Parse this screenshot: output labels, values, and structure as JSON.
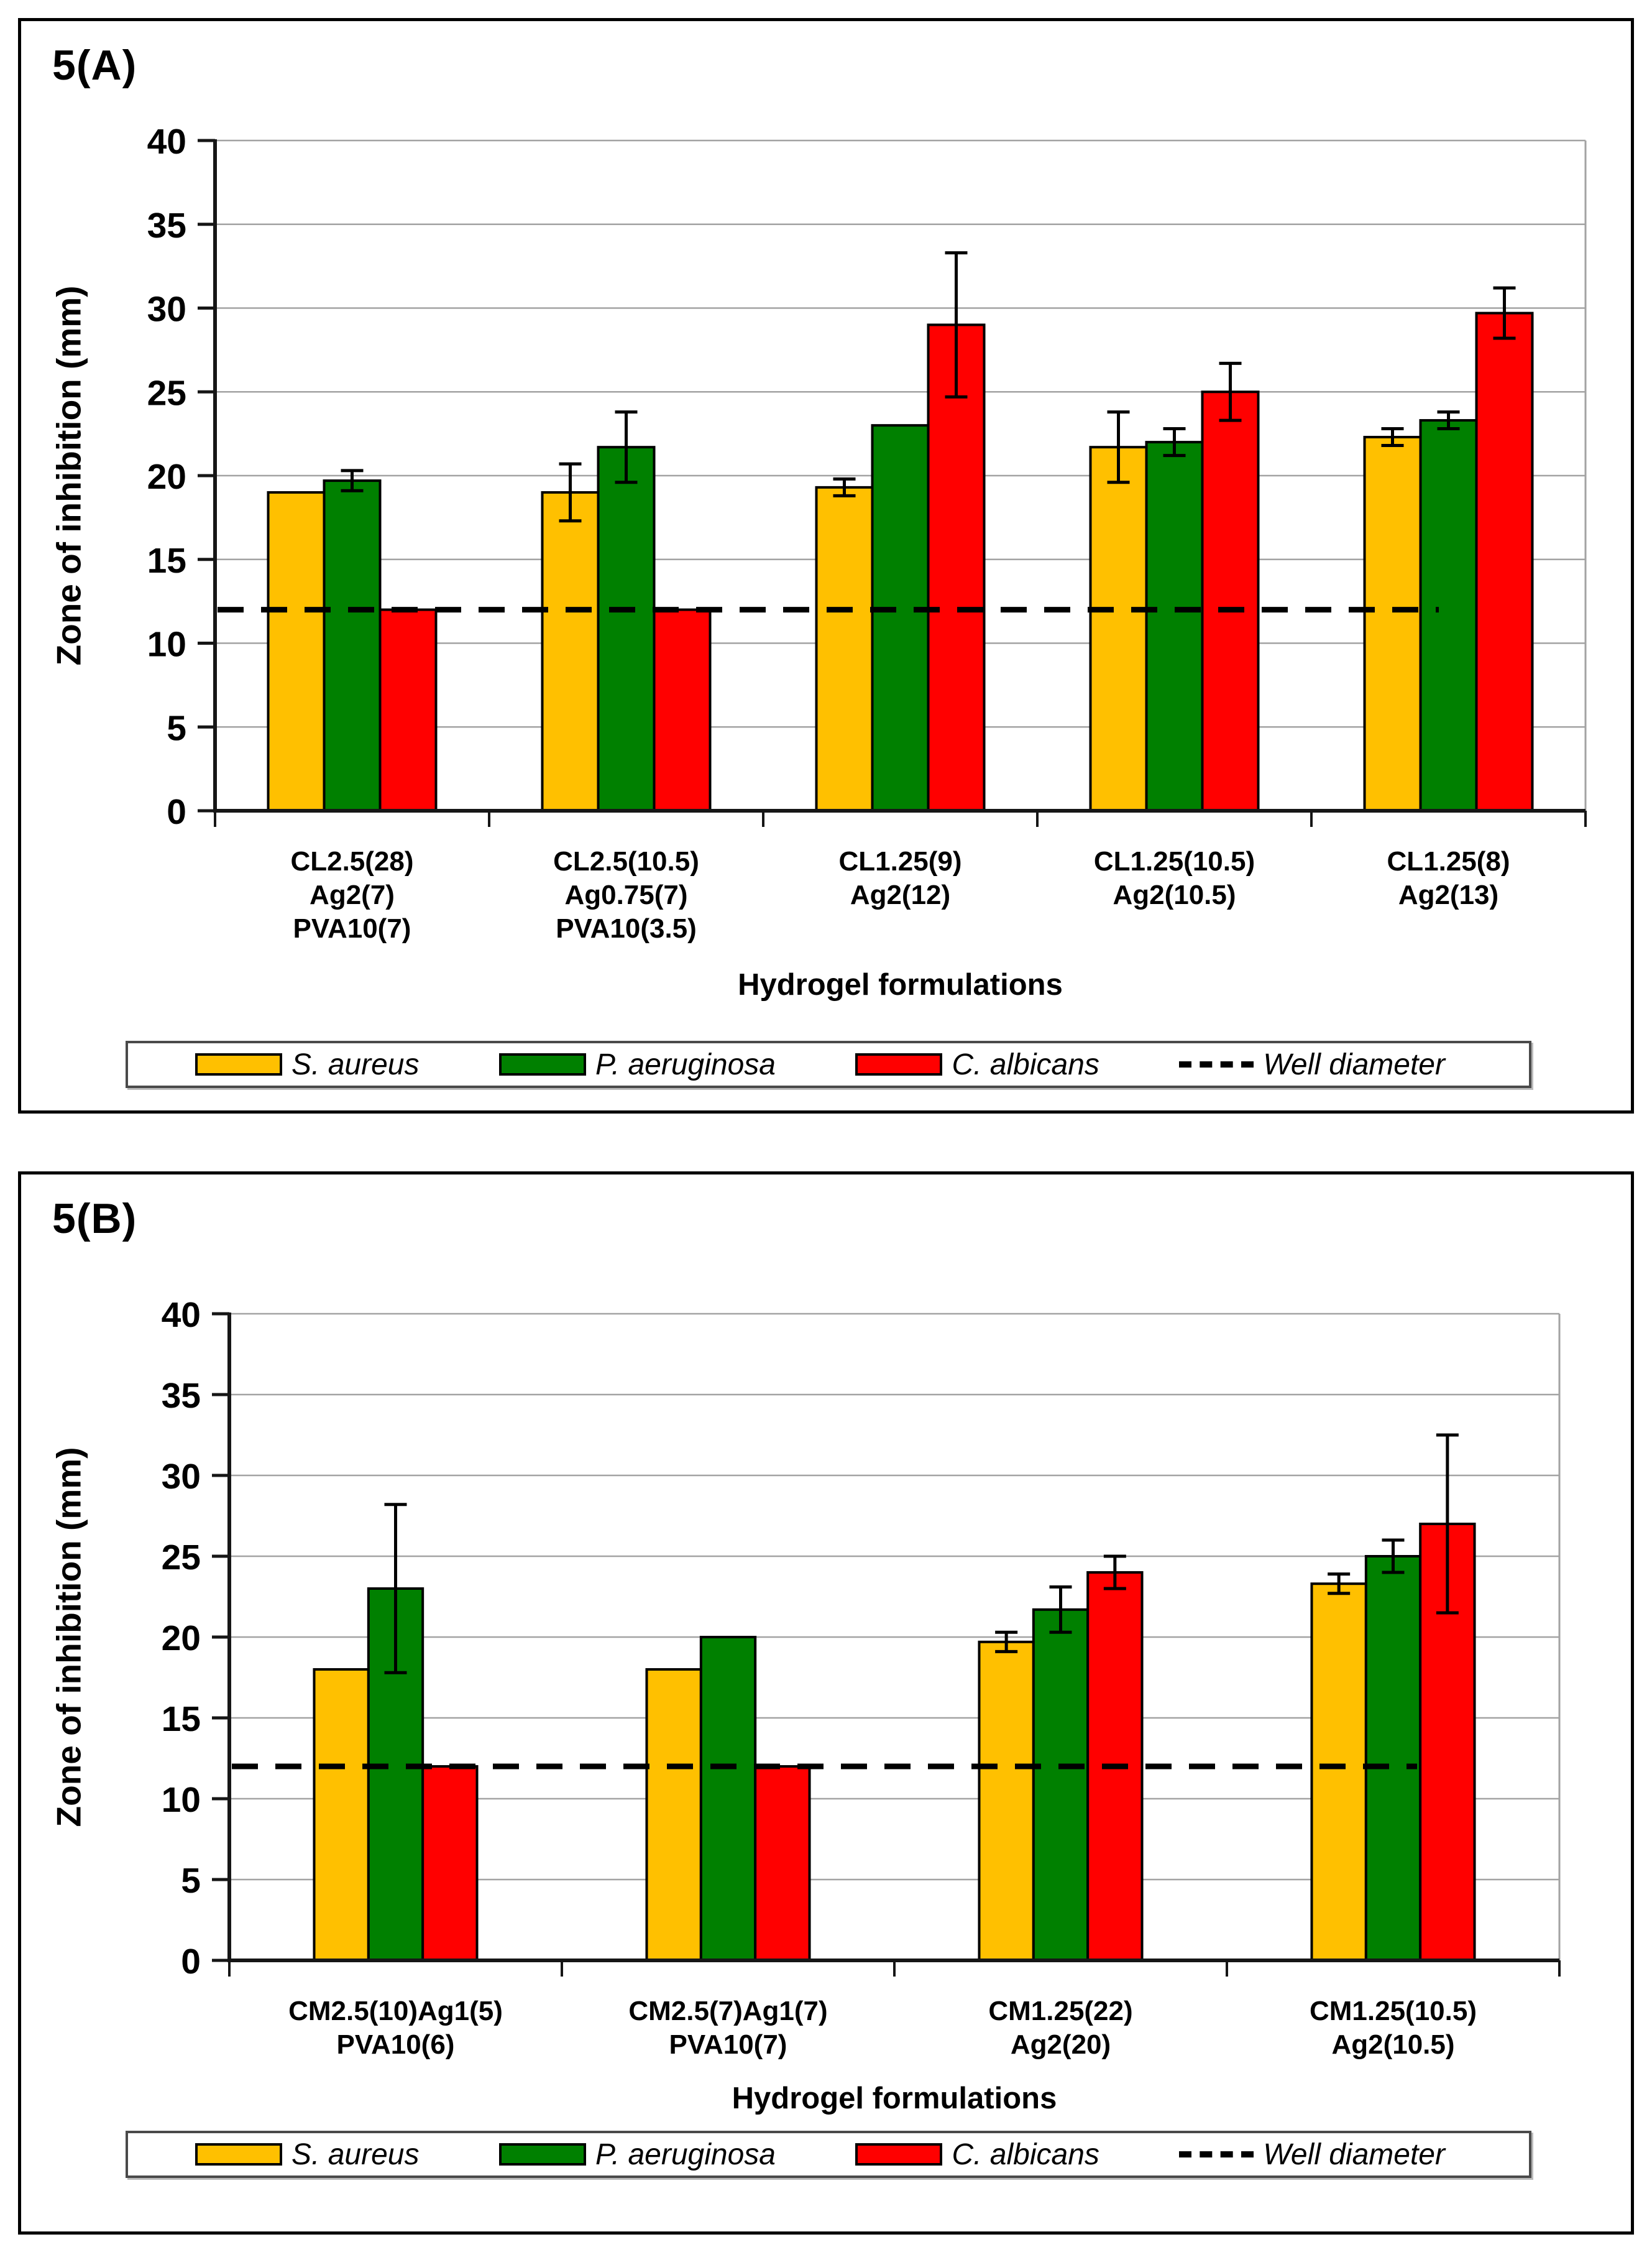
{
  "figure": {
    "background": "#ffffff",
    "bar_outline_color": "#000000",
    "gridline_color": "#a3a3a3",
    "axis_color": "#161616",
    "well_line_color": "#000000"
  },
  "chart_data": [
    {
      "type": "bar",
      "panel_label": "5(A)",
      "xlabel": "Hydrogel formulations",
      "ylabel": "Zone of inhibition (mm)",
      "y_axis": {
        "min": 0,
        "max": 40,
        "step": 5
      },
      "grid": true,
      "legend_position": "bottom",
      "well_diameter": 12,
      "categories": [
        {
          "lines": [
            "CL2.5(28)",
            "Ag2(7)",
            "PVA10(7)"
          ]
        },
        {
          "lines": [
            "CL2.5(10.5)",
            "Ag0.75(7)",
            "PVA10(3.5)"
          ]
        },
        {
          "lines": [
            "CL1.25(9)",
            "Ag2(12)"
          ]
        },
        {
          "lines": [
            "CL1.25(10.5)",
            "Ag2(10.5)"
          ]
        },
        {
          "lines": [
            "CL1.25(8)",
            "Ag2(13)"
          ]
        }
      ],
      "series": [
        {
          "name": "S. aureus",
          "color": "#FFC000",
          "values": [
            19,
            19,
            19.3,
            21.7,
            22.3
          ],
          "errors": [
            0,
            1.7,
            0.5,
            2.1,
            0.5
          ]
        },
        {
          "name": "P. aeruginosa",
          "color": "#008000",
          "values": [
            19.7,
            21.7,
            23,
            22,
            23.3
          ],
          "errors": [
            0.6,
            2.1,
            0,
            0.8,
            0.5
          ]
        },
        {
          "name": "C. albicans",
          "color": "#FF0000",
          "values": [
            12,
            12,
            29,
            25,
            29.7
          ],
          "errors": [
            0,
            0,
            4.3,
            1.7,
            1.5
          ]
        }
      ],
      "legend": [
        {
          "label": "S. aureus",
          "color": "#FFC000",
          "type": "box"
        },
        {
          "label": "P. aeruginosa",
          "color": "#008000",
          "type": "box"
        },
        {
          "label": "C. albicans",
          "color": "#FF0000",
          "type": "box"
        },
        {
          "label": "Well diameter",
          "color": "#000000",
          "type": "dash"
        }
      ]
    },
    {
      "type": "bar",
      "panel_label": "5(B)",
      "xlabel": "Hydrogel formulations",
      "ylabel": "Zone of inhibition (mm)",
      "y_axis": {
        "min": 0,
        "max": 40,
        "step": 5
      },
      "grid": true,
      "legend_position": "bottom",
      "well_diameter": 12,
      "categories": [
        {
          "lines": [
            "CM2.5(10)Ag1(5)",
            "PVA10(6)"
          ]
        },
        {
          "lines": [
            "CM2.5(7)Ag1(7)",
            "PVA10(7)"
          ]
        },
        {
          "lines": [
            "CM1.25(22)",
            "Ag2(20)"
          ]
        },
        {
          "lines": [
            "CM1.25(10.5)",
            "Ag2(10.5)"
          ]
        }
      ],
      "series": [
        {
          "name": "S. aureus",
          "color": "#FFC000",
          "values": [
            18,
            18,
            19.7,
            23.3
          ],
          "errors": [
            0,
            0,
            0.6,
            0.6
          ]
        },
        {
          "name": "P. aeruginosa",
          "color": "#008000",
          "values": [
            23,
            20,
            21.7,
            25
          ],
          "errors": [
            5.2,
            0,
            1.4,
            1
          ]
        },
        {
          "name": "C. albicans",
          "color": "#FF0000",
          "values": [
            12,
            12,
            24,
            27
          ],
          "errors": [
            0,
            0,
            1,
            5.5
          ]
        }
      ],
      "legend": [
        {
          "label": "S. aureus",
          "color": "#FFC000",
          "type": "box"
        },
        {
          "label": "P. aeruginosa",
          "color": "#008000",
          "type": "box"
        },
        {
          "label": "C. albicans",
          "color": "#FF0000",
          "type": "box"
        },
        {
          "label": "Well diameter",
          "color": "#000000",
          "type": "dash"
        }
      ]
    }
  ]
}
